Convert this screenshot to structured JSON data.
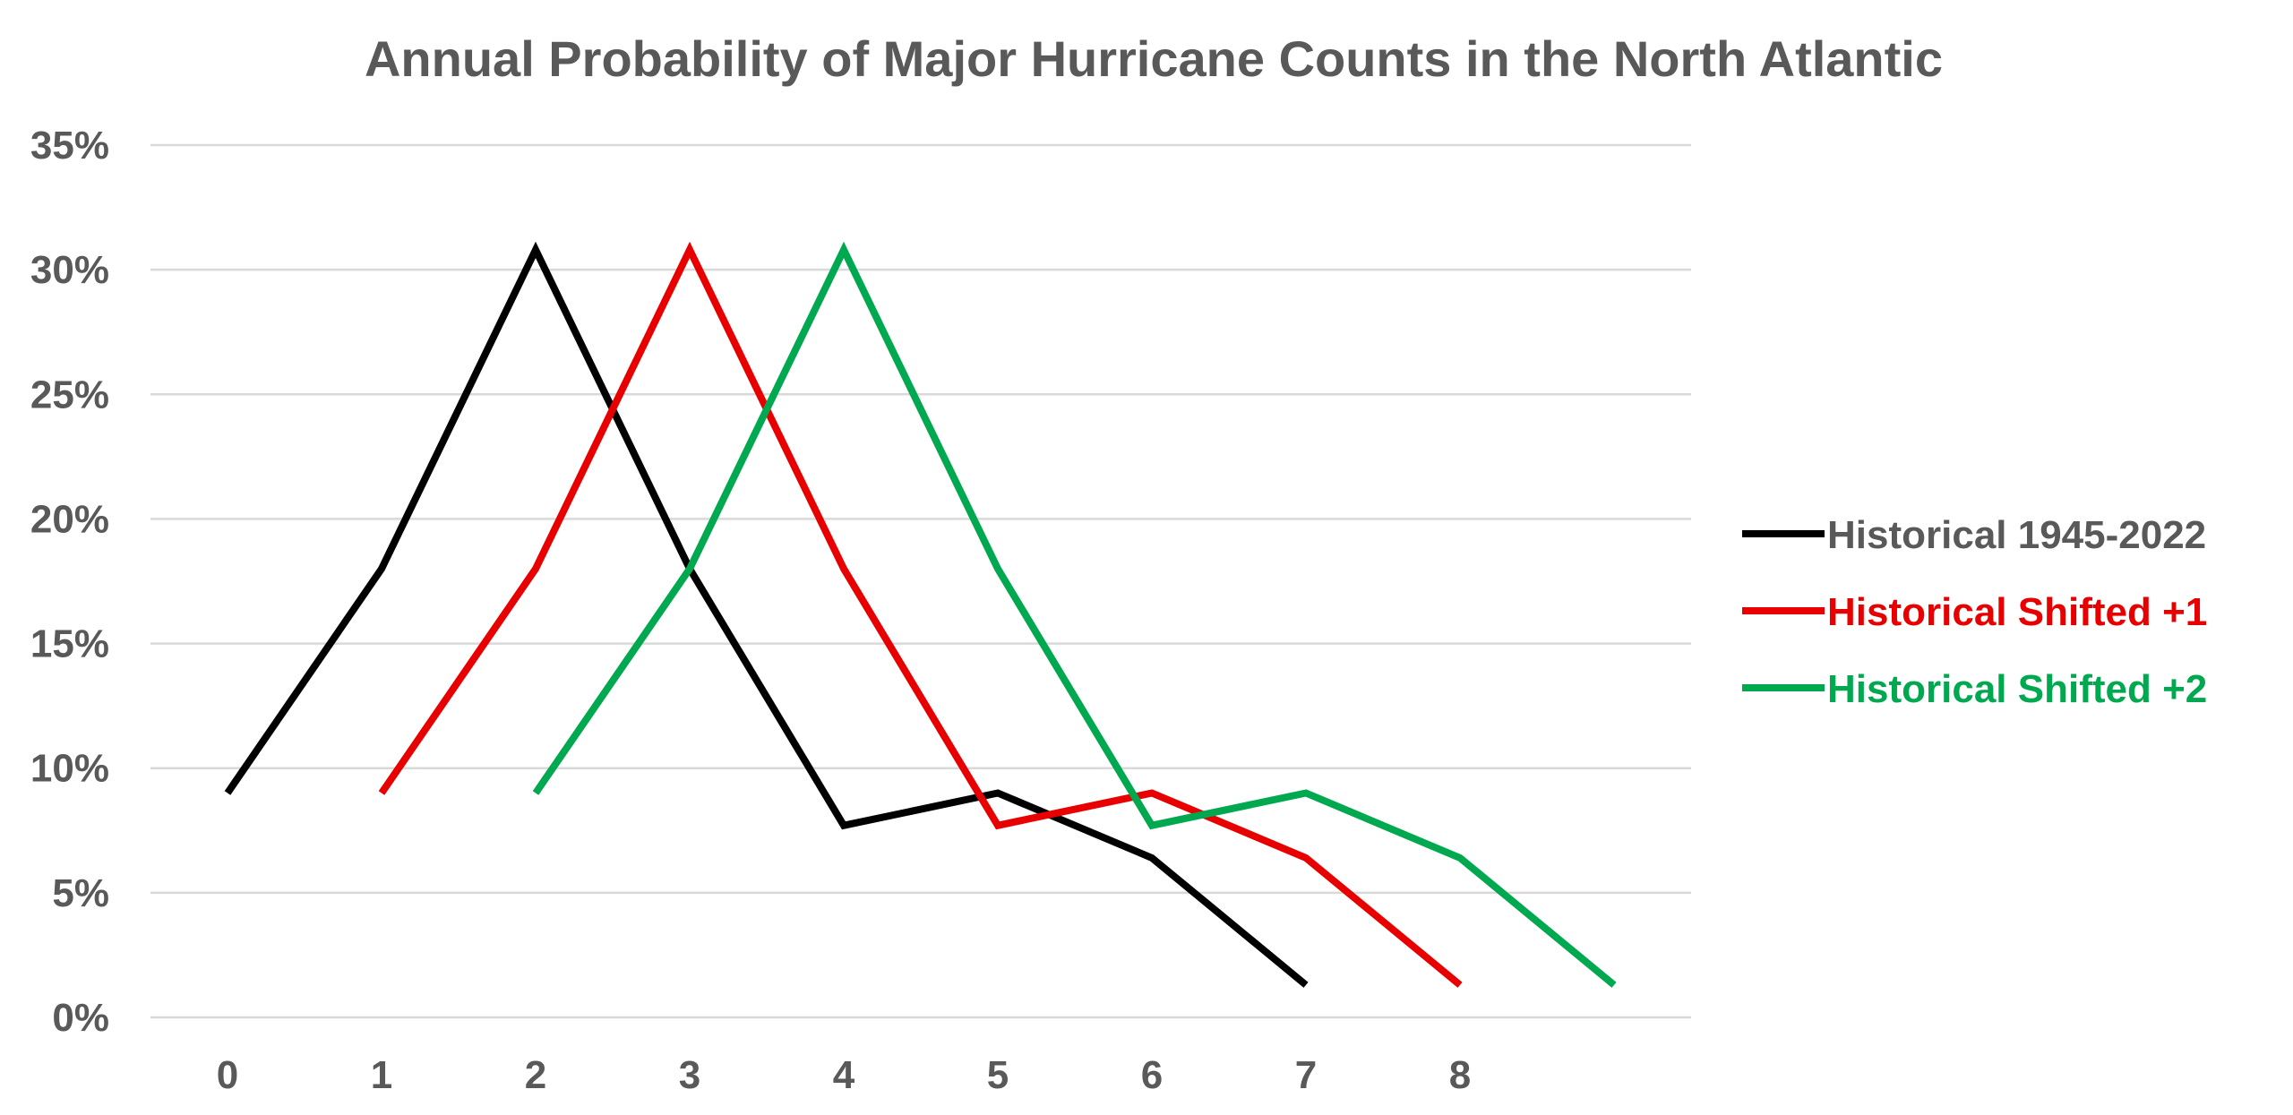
{
  "chart_data": {
    "type": "line",
    "title": "Annual Probability of Major Hurricane Counts in the North Atlantic",
    "xlabel": "",
    "ylabel": "",
    "categories": [
      "0",
      "1",
      "2",
      "3",
      "4",
      "5",
      "6",
      "7",
      "8",
      ""
    ],
    "x": [
      0,
      1,
      2,
      3,
      4,
      5,
      6,
      7,
      8,
      9
    ],
    "ylim": [
      0,
      0.35
    ],
    "y_ticks": [
      0,
      0.05,
      0.1,
      0.15,
      0.2,
      0.25,
      0.3,
      0.35
    ],
    "y_tick_labels": [
      "0%",
      "5%",
      "10%",
      "15%",
      "20%",
      "25%",
      "30%",
      "35%"
    ],
    "grid": true,
    "legend_position": "right",
    "series": [
      {
        "name": "Historical 1945-2022",
        "color": "#000000",
        "x": [
          0,
          1,
          2,
          3,
          4,
          5,
          6,
          7
        ],
        "values": [
          0.09,
          0.18,
          0.308,
          0.18,
          0.077,
          0.09,
          0.064,
          0.013
        ]
      },
      {
        "name": "Historical Shifted +1",
        "color": "#e80000",
        "x": [
          1,
          2,
          3,
          4,
          5,
          6,
          7,
          8
        ],
        "values": [
          0.09,
          0.18,
          0.308,
          0.18,
          0.077,
          0.09,
          0.064,
          0.013
        ]
      },
      {
        "name": "Historical Shifted +2",
        "color": "#00a84f",
        "x": [
          2,
          3,
          4,
          5,
          6,
          7,
          8,
          9
        ],
        "values": [
          0.09,
          0.18,
          0.308,
          0.18,
          0.077,
          0.09,
          0.064,
          0.013
        ]
      }
    ]
  },
  "colors": {
    "text": "#595959",
    "grid": "#d9d9d9",
    "background": "#ffffff"
  }
}
